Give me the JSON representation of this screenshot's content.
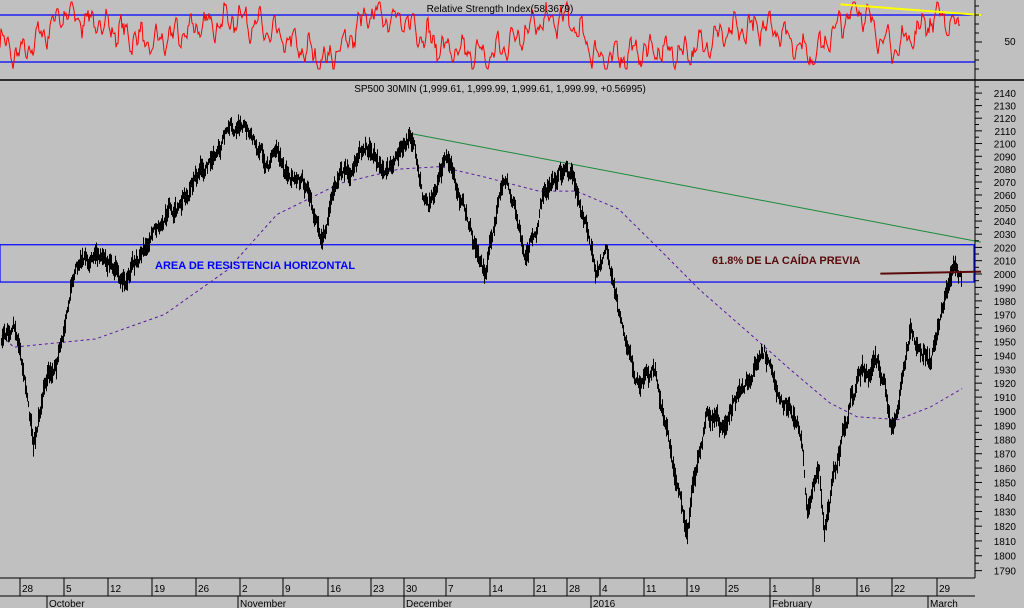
{
  "rsi_panel": {
    "title": "Relative Strength Index(58.3679)",
    "axis_labels": [
      "50"
    ],
    "colors": {
      "line": "#ff0000",
      "bands": "#0000ff",
      "trendline": "#ffff00"
    }
  },
  "price_panel": {
    "title": "SP500 30MIN (1,999.61, 1,999.99, 1,999.61, 1,999.99, +0.56995)",
    "annotations": {
      "resistance_area": "AREA DE RESISTENCIA HORIZONTAL",
      "fibonacci": "61.8% DE LA CAÍDA PREVIA"
    },
    "colors": {
      "price": "#000000",
      "moving_average": "#5a1aa0",
      "trendline": "#1a8a3a",
      "resistance_box": "#0000ff",
      "fib_line": "#5a0a0a",
      "fib_text": "#5a0a0a",
      "area_text": "#0000ff"
    }
  },
  "chart_data": [
    {
      "type": "line",
      "title": "Relative Strength Index(58.3679)",
      "last_value": 58.3679,
      "bands": [
        30,
        70
      ],
      "ylim": [
        25,
        82
      ],
      "ticks": [
        50
      ],
      "series": [
        {
          "values": [
            [
              "2015-09-21",
              62
            ],
            [
              "2015-09-28",
              35
            ],
            [
              "2015-10-05",
              72
            ],
            [
              "2015-10-12",
              60
            ],
            [
              "2015-10-19",
              45
            ],
            [
              "2015-10-26",
              60
            ],
            [
              "2015-11-02",
              68
            ],
            [
              "2015-11-09",
              50
            ],
            [
              "2015-11-16",
              30
            ],
            [
              "2015-11-23",
              72
            ],
            [
              "2015-11-30",
              65
            ],
            [
              "2015-12-07",
              40
            ],
            [
              "2015-12-14",
              35
            ],
            [
              "2015-12-21",
              62
            ],
            [
              "2015-12-28",
              68
            ],
            [
              "2016-01-04",
              32
            ],
            [
              "2016-01-11",
              40
            ],
            [
              "2016-01-19",
              38
            ],
            [
              "2016-01-25",
              55
            ],
            [
              "2016-02-01",
              62
            ],
            [
              "2016-02-08",
              35
            ],
            [
              "2016-02-16",
              78
            ],
            [
              "2016-02-22",
              40
            ],
            [
              "2016-02-29",
              70
            ],
            [
              "2016-03-04",
              58.37
            ]
          ]
        }
      ],
      "trendline": [
        [
          "2016-02-13",
          79
        ],
        [
          "2016-03-07",
          70
        ]
      ]
    },
    {
      "type": "line",
      "title": "SP500 30MIN (1,999.61, 1,999.99, 1,999.61, 1,999.99, +0.56995)",
      "yscale": "log",
      "ylim": [
        1785,
        2150
      ],
      "yticks": [
        2140,
        2130,
        2120,
        2110,
        2100,
        2090,
        2080,
        2070,
        2060,
        2050,
        2040,
        2030,
        2020,
        2010,
        2000,
        1990,
        1980,
        1970,
        1960,
        1950,
        1940,
        1930,
        1920,
        1910,
        1900,
        1890,
        1880,
        1870,
        1860,
        1850,
        1840,
        1830,
        1820,
        1810,
        1800,
        1790
      ],
      "x_ticks": [
        {
          "label": "28",
          "date": "2015-09-28"
        },
        {
          "label": "5",
          "date": "2015-10-05"
        },
        {
          "label": "12",
          "date": "2015-10-12"
        },
        {
          "label": "19",
          "date": "2015-10-19"
        },
        {
          "label": "26",
          "date": "2015-10-26"
        },
        {
          "label": "2",
          "date": "2015-11-02"
        },
        {
          "label": "9",
          "date": "2015-11-09"
        },
        {
          "label": "16",
          "date": "2015-11-16"
        },
        {
          "label": "23",
          "date": "2015-11-23"
        },
        {
          "label": "30",
          "date": "2015-11-30"
        },
        {
          "label": "7",
          "date": "2015-12-07"
        },
        {
          "label": "14",
          "date": "2015-12-14"
        },
        {
          "label": "21",
          "date": "2015-12-21"
        },
        {
          "label": "28",
          "date": "2015-12-28"
        },
        {
          "label": "4",
          "date": "2016-01-04"
        },
        {
          "label": "11",
          "date": "2016-01-11"
        },
        {
          "label": "19",
          "date": "2016-01-19"
        },
        {
          "label": "25",
          "date": "2016-01-25"
        },
        {
          "label": "1",
          "date": "2016-02-01"
        },
        {
          "label": "8",
          "date": "2016-02-08"
        },
        {
          "label": "16",
          "date": "2016-02-16"
        },
        {
          "label": "22",
          "date": "2016-02-22"
        },
        {
          "label": "29",
          "date": "2016-02-29"
        }
      ],
      "x_months": [
        {
          "label": "October",
          "date": "2015-10-01"
        },
        {
          "label": "November",
          "date": "2015-11-01"
        },
        {
          "label": "December",
          "date": "2015-12-01"
        },
        {
          "label": "2016",
          "date": "2016-01-04"
        },
        {
          "label": "February",
          "date": "2016-02-01"
        },
        {
          "label": "March",
          "date": "2016-03-01"
        }
      ],
      "series": [
        {
          "role": "price",
          "values": [
            [
              "2015-09-25",
              1950
            ],
            [
              "2015-09-27",
              1960
            ],
            [
              "2015-09-30",
              1875
            ],
            [
              "2015-10-02",
              1920
            ],
            [
              "2015-10-05",
              1960
            ],
            [
              "2015-10-06",
              1988
            ],
            [
              "2015-10-10",
              2015
            ],
            [
              "2015-10-15",
              1995
            ],
            [
              "2015-10-19",
              2030
            ],
            [
              "2015-10-23",
              2050
            ],
            [
              "2015-10-29",
              2090
            ],
            [
              "2015-11-03",
              2110
            ],
            [
              "2015-11-08",
              2095
            ],
            [
              "2015-11-12",
              2075
            ],
            [
              "2015-11-15",
              2025
            ],
            [
              "2015-11-18",
              2080
            ],
            [
              "2015-11-21",
              2095
            ],
            [
              "2015-11-28",
              2090
            ],
            [
              "2015-12-01",
              2105
            ],
            [
              "2015-12-04",
              2050
            ],
            [
              "2015-12-07",
              2090
            ],
            [
              "2015-12-09",
              2055
            ],
            [
              "2015-12-13",
              2000
            ],
            [
              "2015-12-16",
              2070
            ],
            [
              "2015-12-20",
              2015
            ],
            [
              "2015-12-23",
              2060
            ],
            [
              "2015-12-28",
              2080
            ],
            [
              "2015-12-31",
              2045
            ],
            [
              "2016-01-03",
              2000
            ],
            [
              "2016-01-05",
              2020
            ],
            [
              "2016-01-08",
              1950
            ],
            [
              "2016-01-10",
              1920
            ],
            [
              "2016-01-13",
              1930
            ],
            [
              "2016-01-16",
              1870
            ],
            [
              "2016-01-19",
              1815
            ],
            [
              "2016-01-22",
              1900
            ],
            [
              "2016-01-25",
              1890
            ],
            [
              "2016-01-28",
              1920
            ],
            [
              "2016-01-31",
              1945
            ],
            [
              "2016-02-03",
              1905
            ],
            [
              "2016-02-06",
              1880
            ],
            [
              "2016-02-07",
              1830
            ],
            [
              "2016-02-09",
              1860
            ],
            [
              "2016-02-10",
              1815
            ],
            [
              "2016-02-14",
              1890
            ],
            [
              "2016-02-16",
              1925
            ],
            [
              "2016-02-19",
              1940
            ],
            [
              "2016-02-20",
              1925
            ],
            [
              "2016-02-22",
              1890
            ],
            [
              "2016-02-24",
              1935
            ],
            [
              "2016-02-25",
              1960
            ],
            [
              "2016-02-28",
              1935
            ],
            [
              "2016-03-01",
              1975
            ],
            [
              "2016-03-03",
              2005
            ],
            [
              "2016-03-04",
              1999.99
            ]
          ]
        },
        {
          "role": "moving_average",
          "values": [
            [
              "2015-09-21",
              1973
            ],
            [
              "2015-09-27",
              1946
            ],
            [
              "2015-10-10",
              1952
            ],
            [
              "2015-10-21",
              1970
            ],
            [
              "2015-10-31",
              2003
            ],
            [
              "2015-11-08",
              2045
            ],
            [
              "2015-11-18",
              2069
            ],
            [
              "2015-11-29",
              2080
            ],
            [
              "2015-12-06",
              2082
            ],
            [
              "2015-12-13",
              2074
            ],
            [
              "2015-12-22",
              2063
            ],
            [
              "2015-12-30",
              2063
            ],
            [
              "2016-01-07",
              2049
            ],
            [
              "2016-01-14",
              2018
            ],
            [
              "2016-01-21",
              1988
            ],
            [
              "2016-01-28",
              1959
            ],
            [
              "2016-02-04",
              1931
            ],
            [
              "2016-02-11",
              1906
            ],
            [
              "2016-02-16",
              1896
            ],
            [
              "2016-02-23",
              1894
            ],
            [
              "2016-02-28",
              1903
            ],
            [
              "2016-03-04",
              1916
            ]
          ]
        }
      ],
      "trendline": [
        [
          "2015-12-01",
          2108
        ],
        [
          "2016-03-07",
          2024
        ]
      ],
      "resistance_zone": [
        1994,
        2022
      ],
      "fib_level": {
        "value": 2001,
        "from": "2016-02-20",
        "to": "2016-03-07"
      }
    }
  ]
}
